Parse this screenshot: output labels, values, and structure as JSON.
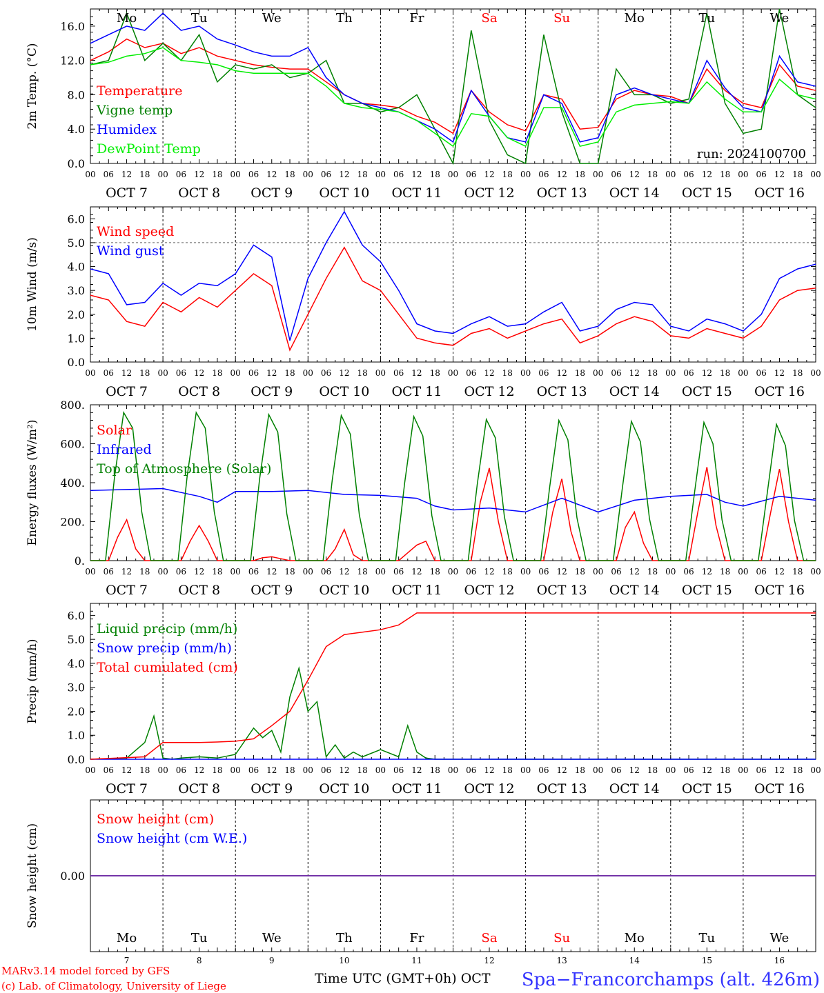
{
  "chart_data": [
    {
      "type": "line",
      "ylabel": "2m Temp. (°C)",
      "ytick_labels": [
        "0.0",
        "4.0",
        "8.0",
        "12.0",
        "16.0"
      ],
      "ylim": [
        0,
        18
      ],
      "run_label": "run: 2024100700",
      "top_day_labels": [
        "Mo",
        "Tu",
        "We",
        "Th",
        "Fr",
        "Sa",
        "Su",
        "Mo",
        "Tu",
        "We"
      ],
      "series": [
        {
          "name": "Temperature",
          "color": "#ff0000",
          "x": [
            0,
            6,
            12,
            18,
            24,
            30,
            36,
            42,
            48,
            54,
            60,
            66,
            72,
            78,
            84,
            90,
            96,
            102,
            108,
            114,
            120,
            126,
            132,
            138,
            144,
            150,
            156,
            162,
            168,
            174,
            180,
            186,
            192,
            198,
            204,
            210,
            216,
            222,
            228,
            234,
            240
          ],
          "values": [
            12.0,
            13.0,
            14.5,
            13.5,
            14.0,
            12.8,
            13.5,
            12.5,
            12.0,
            11.5,
            11.2,
            11.0,
            11.0,
            9.5,
            8.0,
            7.0,
            6.8,
            6.5,
            5.5,
            4.8,
            3.5,
            8.5,
            6.0,
            4.5,
            3.8,
            8.0,
            7.5,
            4.0,
            4.2,
            7.5,
            8.5,
            8.0,
            7.8,
            7.0,
            11.0,
            8.5,
            7.0,
            6.5,
            11.5,
            9.0,
            8.5
          ]
        },
        {
          "name": "Vigne temp",
          "color": "#008000",
          "x": [
            0,
            6,
            12,
            18,
            24,
            30,
            36,
            42,
            48,
            54,
            60,
            66,
            72,
            78,
            84,
            90,
            96,
            102,
            108,
            114,
            120,
            126,
            132,
            138,
            144,
            150,
            156,
            162,
            168,
            174,
            180,
            186,
            192,
            198,
            204,
            210,
            216,
            222,
            228,
            234,
            240
          ],
          "values": [
            11.5,
            12.0,
            17.5,
            12.0,
            14.0,
            12.0,
            15.0,
            9.5,
            11.5,
            11.0,
            11.5,
            10.0,
            10.5,
            12.0,
            7.0,
            7.0,
            6.0,
            6.5,
            8.0,
            4.0,
            0.0,
            15.5,
            5.0,
            1.0,
            0.0,
            15.0,
            6.0,
            0.0,
            0.0,
            11.0,
            8.0,
            8.0,
            7.0,
            7.5,
            17.5,
            7.0,
            3.5,
            4.0,
            18.0,
            8.0,
            6.5
          ]
        },
        {
          "name": "Humidex",
          "color": "#0000ff",
          "x": [
            0,
            6,
            12,
            18,
            24,
            30,
            36,
            42,
            48,
            54,
            60,
            66,
            72,
            78,
            84,
            90,
            96,
            102,
            108,
            114,
            120,
            126,
            132,
            138,
            144,
            150,
            156,
            162,
            168,
            174,
            180,
            186,
            192,
            198,
            204,
            210,
            216,
            222,
            228,
            234,
            240
          ],
          "values": [
            14.0,
            15.0,
            16.0,
            15.5,
            17.5,
            15.5,
            16.0,
            14.5,
            13.8,
            13.0,
            12.5,
            12.5,
            13.5,
            10.0,
            8.0,
            7.0,
            6.5,
            6.0,
            5.0,
            4.0,
            2.5,
            8.5,
            5.5,
            3.0,
            2.5,
            8.0,
            7.0,
            2.5,
            3.0,
            8.0,
            8.8,
            8.0,
            7.5,
            7.0,
            12.0,
            8.8,
            6.5,
            6.0,
            12.5,
            9.5,
            9.0
          ]
        },
        {
          "name": "DewPoint Temp",
          "color": "#00ee00",
          "x": [
            0,
            6,
            12,
            18,
            24,
            30,
            36,
            42,
            48,
            54,
            60,
            66,
            72,
            78,
            84,
            90,
            96,
            102,
            108,
            114,
            120,
            126,
            132,
            138,
            144,
            150,
            156,
            162,
            168,
            174,
            180,
            186,
            192,
            198,
            204,
            210,
            216,
            222,
            228,
            234,
            240
          ],
          "values": [
            11.5,
            11.8,
            12.5,
            12.8,
            13.5,
            12.0,
            11.8,
            11.5,
            10.8,
            10.5,
            10.5,
            10.5,
            10.5,
            9.0,
            7.0,
            6.5,
            6.3,
            6.0,
            5.0,
            3.5,
            2.0,
            5.8,
            5.5,
            3.0,
            2.0,
            6.5,
            6.5,
            2.0,
            2.5,
            6.0,
            6.8,
            7.0,
            7.2,
            7.0,
            9.5,
            7.5,
            6.0,
            6.0,
            9.8,
            8.0,
            7.5
          ]
        }
      ]
    },
    {
      "type": "line",
      "ylabel": "10m Wind (m/s)",
      "ytick_labels": [
        "0.0",
        "1.0",
        "2.0",
        "3.0",
        "4.0",
        "5.0",
        "6.0"
      ],
      "ylim": [
        0,
        6.5
      ],
      "series": [
        {
          "name": "Wind speed",
          "color": "#ff0000",
          "x": [
            0,
            6,
            12,
            18,
            24,
            30,
            36,
            42,
            48,
            54,
            60,
            66,
            72,
            78,
            84,
            90,
            96,
            102,
            108,
            114,
            120,
            126,
            132,
            138,
            144,
            150,
            156,
            162,
            168,
            174,
            180,
            186,
            192,
            198,
            204,
            210,
            216,
            222,
            228,
            234,
            240
          ],
          "values": [
            2.8,
            2.6,
            1.7,
            1.5,
            2.5,
            2.1,
            2.7,
            2.3,
            3.0,
            3.7,
            3.2,
            0.5,
            2.0,
            3.5,
            4.8,
            3.4,
            3.0,
            2.0,
            1.0,
            0.8,
            0.7,
            1.2,
            1.4,
            1.0,
            1.3,
            1.6,
            1.8,
            0.8,
            1.1,
            1.6,
            1.9,
            1.7,
            1.1,
            1.0,
            1.4,
            1.2,
            1.0,
            1.5,
            2.6,
            3.0,
            3.1
          ]
        },
        {
          "name": "Wind gust",
          "color": "#0000ff",
          "x": [
            0,
            6,
            12,
            18,
            24,
            30,
            36,
            42,
            48,
            54,
            60,
            66,
            72,
            78,
            84,
            90,
            96,
            102,
            108,
            114,
            120,
            126,
            132,
            138,
            144,
            150,
            156,
            162,
            168,
            174,
            180,
            186,
            192,
            198,
            204,
            210,
            216,
            222,
            228,
            234,
            240
          ],
          "values": [
            3.9,
            3.7,
            2.4,
            2.5,
            3.3,
            2.8,
            3.3,
            3.2,
            3.7,
            4.9,
            4.4,
            0.9,
            3.5,
            5.0,
            6.3,
            4.9,
            4.2,
            3.0,
            1.6,
            1.3,
            1.2,
            1.6,
            1.9,
            1.5,
            1.6,
            2.1,
            2.5,
            1.3,
            1.5,
            2.2,
            2.5,
            2.4,
            1.5,
            1.3,
            1.8,
            1.6,
            1.3,
            2.0,
            3.5,
            3.9,
            4.1
          ]
        }
      ]
    },
    {
      "type": "line",
      "ylabel": "Energy fluxes (W/m²)",
      "ytick_labels": [
        "0.",
        "200.",
        "400.",
        "600.",
        "800."
      ],
      "ylim": [
        0,
        800
      ],
      "series": [
        {
          "name": "Solar",
          "color": "#ff0000",
          "x": [
            0,
            6,
            9,
            12,
            15,
            18,
            24,
            30,
            33,
            36,
            39,
            42,
            48,
            54,
            57,
            60,
            63,
            66,
            72,
            78,
            81,
            84,
            87,
            90,
            96,
            102,
            105,
            108,
            111,
            114,
            120,
            126,
            129,
            132,
            135,
            138,
            144,
            150,
            153,
            156,
            159,
            162,
            168,
            174,
            177,
            180,
            183,
            186,
            192,
            198,
            201,
            204,
            207,
            210,
            216,
            222,
            225,
            228,
            231,
            234,
            240
          ],
          "values": [
            0,
            0,
            120,
            210,
            60,
            0,
            0,
            0,
            100,
            180,
            100,
            0,
            0,
            0,
            15,
            20,
            10,
            0,
            0,
            0,
            60,
            160,
            30,
            0,
            0,
            0,
            40,
            80,
            100,
            0,
            0,
            0,
            300,
            475,
            200,
            0,
            0,
            0,
            250,
            420,
            150,
            0,
            0,
            0,
            170,
            250,
            90,
            0,
            0,
            0,
            250,
            480,
            180,
            0,
            0,
            0,
            240,
            470,
            200,
            0,
            0
          ]
        },
        {
          "name": "Infrared",
          "color": "#0000ff",
          "x": [
            0,
            12,
            24,
            36,
            42,
            48,
            60,
            72,
            84,
            96,
            108,
            114,
            120,
            132,
            144,
            156,
            168,
            180,
            192,
            204,
            210,
            216,
            228,
            240
          ],
          "values": [
            360,
            365,
            370,
            330,
            300,
            355,
            355,
            360,
            340,
            335,
            320,
            280,
            260,
            270,
            250,
            320,
            250,
            310,
            330,
            340,
            300,
            280,
            330,
            310
          ]
        },
        {
          "name": "Top of Atmosphere (Solar)",
          "color": "#008000",
          "x": [
            0,
            5,
            8,
            11,
            14,
            17,
            20,
            24,
            29,
            32,
            35,
            38,
            41,
            44,
            48,
            53,
            56,
            59,
            62,
            65,
            68,
            72,
            77,
            80,
            83,
            86,
            89,
            92,
            96,
            101,
            104,
            107,
            110,
            113,
            116,
            120,
            125,
            128,
            131,
            134,
            137,
            140,
            144,
            149,
            152,
            155,
            158,
            161,
            164,
            168,
            173,
            176,
            179,
            182,
            185,
            188,
            192,
            197,
            200,
            203,
            206,
            209,
            212,
            216,
            221,
            224,
            227,
            230,
            233,
            236,
            240
          ],
          "values": [
            0,
            0,
            430,
            760,
            680,
            250,
            0,
            0,
            0,
            430,
            760,
            680,
            250,
            0,
            0,
            0,
            420,
            750,
            660,
            240,
            0,
            0,
            0,
            410,
            745,
            650,
            235,
            0,
            0,
            0,
            400,
            740,
            640,
            230,
            0,
            0,
            0,
            390,
            725,
            630,
            225,
            0,
            0,
            0,
            380,
            720,
            620,
            220,
            0,
            0,
            0,
            370,
            715,
            610,
            215,
            0,
            0,
            0,
            360,
            710,
            600,
            210,
            0,
            0,
            0,
            350,
            700,
            590,
            205,
            0,
            0
          ]
        }
      ]
    },
    {
      "type": "line",
      "ylabel": "Precip (mm/h)",
      "ytick_labels": [
        "0.0",
        "1.0",
        "2.0",
        "3.0",
        "4.0",
        "5.0",
        "6.0"
      ],
      "ylim": [
        0,
        6.5
      ],
      "series": [
        {
          "name": "Liquid precip (mm/h)",
          "color": "#008000",
          "x": [
            0,
            12,
            18,
            21,
            24,
            27,
            30,
            36,
            42,
            48,
            54,
            57,
            60,
            63,
            66,
            69,
            72,
            75,
            78,
            81,
            84,
            87,
            90,
            96,
            102,
            105,
            108,
            111,
            114,
            117,
            120,
            240
          ],
          "values": [
            0,
            0.05,
            0.7,
            1.8,
            0.05,
            0,
            0.05,
            0.1,
            0.05,
            0.2,
            1.3,
            0.9,
            1.2,
            0.3,
            2.6,
            3.8,
            2.0,
            2.4,
            0.1,
            0.6,
            0.05,
            0.3,
            0.1,
            0.4,
            0.1,
            1.4,
            0.3,
            0.05,
            0,
            0,
            0,
            0
          ]
        },
        {
          "name": "Snow precip (mm/h)",
          "color": "#0000ff",
          "x": [
            0,
            240
          ],
          "values": [
            0,
            0
          ]
        },
        {
          "name": "Total cumulated (cm)",
          "color": "#ff0000",
          "x": [
            0,
            18,
            24,
            30,
            36,
            42,
            48,
            54,
            60,
            66,
            72,
            78,
            84,
            90,
            96,
            102,
            108,
            114,
            120,
            240
          ],
          "values": [
            0,
            0.1,
            0.7,
            0.7,
            0.7,
            0.72,
            0.75,
            0.85,
            1.4,
            2.0,
            3.3,
            4.7,
            5.2,
            5.3,
            5.4,
            5.6,
            6.1,
            6.1,
            6.1,
            6.1
          ]
        }
      ]
    },
    {
      "type": "line",
      "ylabel": "Snow height (cm)",
      "ytick_labels": [
        "0.00"
      ],
      "ylim": [
        -1,
        1
      ],
      "series": [
        {
          "name": "Snow height (cm)",
          "color": "#ff0000",
          "x": [
            0,
            240
          ],
          "values": [
            0,
            0
          ]
        },
        {
          "name": "Snow height (cm W.E.)",
          "color": "#0000ff",
          "x": [
            0,
            240
          ],
          "values": [
            0,
            0
          ]
        }
      ],
      "bottom_day_labels": [
        "Mo",
        "Tu",
        "We",
        "Th",
        "Fr",
        "Sa",
        "Su",
        "Mo",
        "Tu",
        "We"
      ],
      "bottom_day_numbers": [
        "7",
        "8",
        "9",
        "10",
        "11",
        "12",
        "13",
        "14",
        "15",
        "16"
      ]
    }
  ],
  "common": {
    "hour_labels": [
      "00",
      "06",
      "12",
      "18"
    ],
    "final_hour_label": "00",
    "date_labels": [
      "OCT  7",
      "OCT  8",
      "OCT  9",
      "OCT 10",
      "OCT 11",
      "OCT 12",
      "OCT 13",
      "OCT 14",
      "OCT 15",
      "OCT 16"
    ],
    "weekend_color": "#ff0000"
  },
  "footer": {
    "model_line": "MARv3.14 model forced by GFS",
    "credit_line": "(c) Lab. of Climatology, University of Liege",
    "xlabel": "Time UTC (GMT+0h) OCT",
    "station": "Spa−Francorchamps (alt. 426m)"
  }
}
